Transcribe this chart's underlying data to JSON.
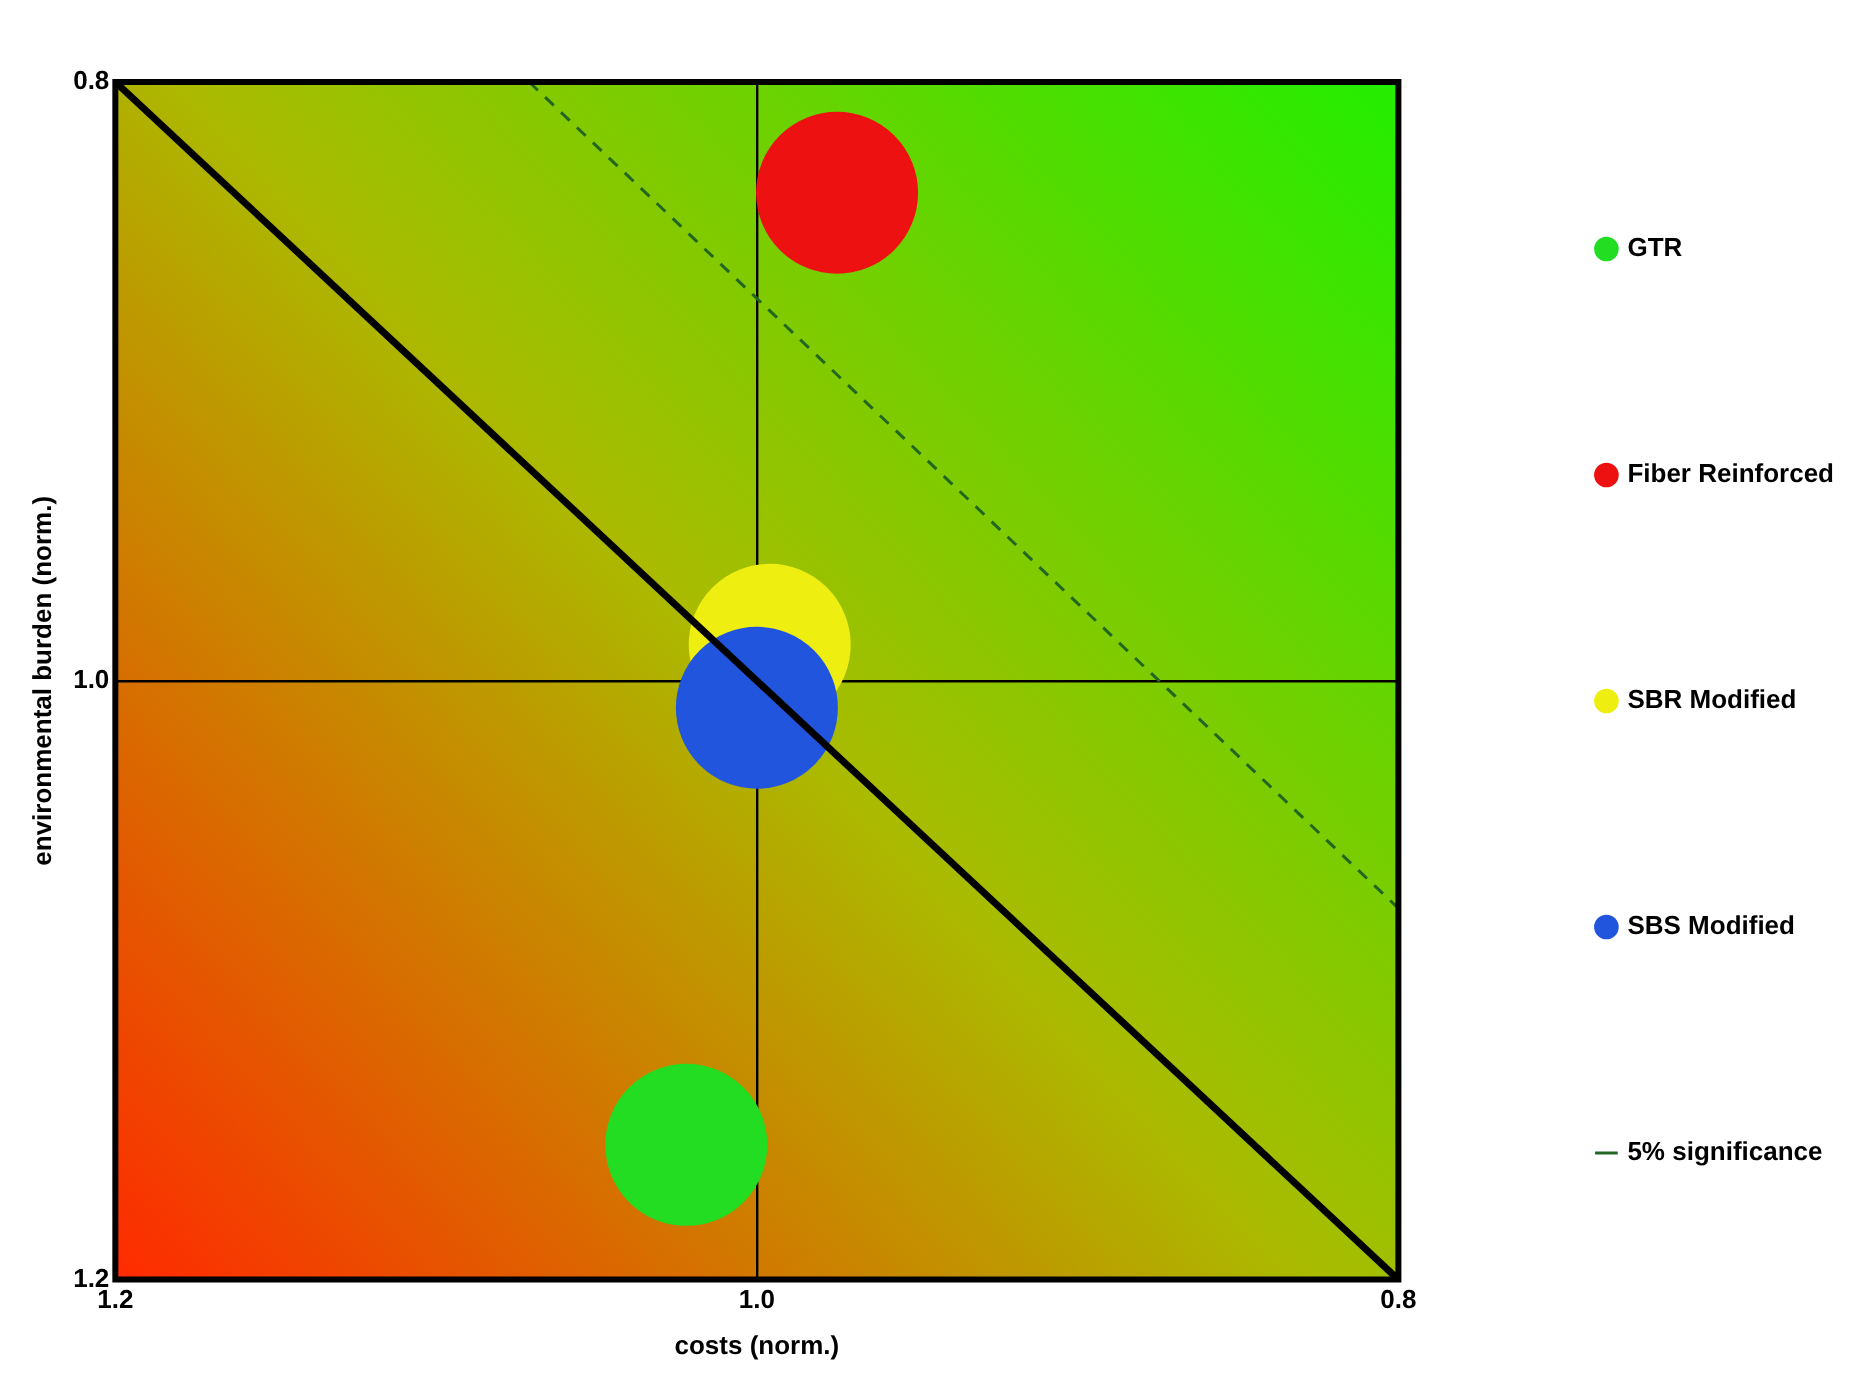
{
  "chart_data": {
    "type": "bubble",
    "xlabel": "costs (norm.)",
    "ylabel": "environmental burden (norm.)",
    "xlim": [
      1.2,
      0.8
    ],
    "xticks": [
      {
        "value": 1.2,
        "label": "1.2"
      },
      {
        "value": 1,
        "label": "1.0"
      },
      {
        "value": 0.8,
        "label": "0.8"
      }
    ],
    "ylim": [
      1.2,
      0.8
    ],
    "yticks": [
      {
        "value": 1.2,
        "label": "1.2"
      },
      {
        "value": 1,
        "label": "1.0"
      },
      {
        "value": 0.8,
        "label": "0.8"
      }
    ],
    "grid": true,
    "legend": "right",
    "series": [
      {
        "name": "GTR",
        "color": "#22dd22",
        "x": [
          1.022
        ],
        "values": [
          1.155
        ],
        "sizes": [
          1
        ]
      },
      {
        "name": "Fiber Reinforced",
        "color": "#ee1111",
        "x": [
          0.975
        ],
        "values": [
          0.837
        ],
        "sizes": [
          1
        ]
      },
      {
        "name": "SBR Modified",
        "color": "#eeee11",
        "x": [
          0.996
        ],
        "values": [
          0.988
        ],
        "sizes": [
          1
        ]
      },
      {
        "name": "SBS Modified",
        "color": "#2255dd",
        "x": [
          1.0
        ],
        "values": [
          1.009
        ],
        "sizes": [
          1
        ]
      },
      {
        "type": "line",
        "color": "#000000",
        "line_style": "solid",
        "x": [
          1.2,
          0.8
        ],
        "values": [
          0.8,
          1.2
        ]
      },
      {
        "name": "5% significance",
        "type": "line",
        "color": "#226622",
        "line_style": "dashed",
        "x": [
          1.071,
          0.8
        ],
        "values": [
          0.8,
          1.076
        ]
      }
    ]
  }
}
